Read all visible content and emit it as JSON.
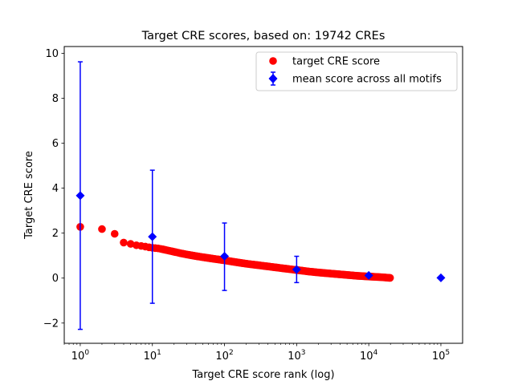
{
  "chart_data": {
    "type": "scatter",
    "title": "Target CRE scores, based on: 19742 CREs",
    "xlabel": "Target CRE score rank (log)",
    "ylabel": "Target CRE score",
    "xscale": "log",
    "xlim": [
      0.6,
      200000
    ],
    "ylim": [
      -2.9,
      10.3
    ],
    "xticks": [
      {
        "base": "10",
        "exp": "0",
        "value": 1
      },
      {
        "base": "10",
        "exp": "1",
        "value": 10
      },
      {
        "base": "10",
        "exp": "2",
        "value": 100
      },
      {
        "base": "10",
        "exp": "3",
        "value": 1000
      },
      {
        "base": "10",
        "exp": "4",
        "value": 10000
      },
      {
        "base": "10",
        "exp": "5",
        "value": 100000
      }
    ],
    "yticks": [
      "−2",
      "0",
      "2",
      "4",
      "6",
      "8",
      "10"
    ],
    "grid": false,
    "legend_position": "top-right",
    "series": [
      {
        "name": "target CRE score",
        "kind": "points",
        "color": "#ff0000",
        "marker": "circle",
        "curve": [
          [
            1,
            2.28
          ],
          [
            2,
            2.18
          ],
          [
            3,
            1.97
          ],
          [
            4,
            1.58
          ],
          [
            5,
            1.52
          ],
          [
            6,
            1.46
          ],
          [
            7,
            1.43
          ],
          [
            8,
            1.4
          ],
          [
            9,
            1.37
          ],
          [
            10,
            1.35
          ],
          [
            12,
            1.32
          ],
          [
            14,
            1.28
          ],
          [
            17,
            1.22
          ],
          [
            20,
            1.17
          ],
          [
            25,
            1.1
          ],
          [
            30,
            1.05
          ],
          [
            40,
            0.98
          ],
          [
            50,
            0.93
          ],
          [
            70,
            0.86
          ],
          [
            100,
            0.79
          ],
          [
            150,
            0.7
          ],
          [
            200,
            0.64
          ],
          [
            300,
            0.57
          ],
          [
            500,
            0.48
          ],
          [
            700,
            0.42
          ],
          [
            1000,
            0.36
          ],
          [
            1500,
            0.29
          ],
          [
            2000,
            0.25
          ],
          [
            3000,
            0.2
          ],
          [
            5000,
            0.14
          ],
          [
            7000,
            0.1
          ],
          [
            10000,
            0.07
          ],
          [
            15000,
            0.04
          ],
          [
            19742,
            0.01
          ]
        ]
      },
      {
        "name": "mean score across all motifs",
        "kind": "errorbar",
        "color": "#0000ff",
        "marker": "diamond",
        "points": [
          {
            "x": 1,
            "y": 3.67,
            "low": -2.28,
            "high": 9.62
          },
          {
            "x": 10,
            "y": 1.84,
            "low": -1.12,
            "high": 4.8
          },
          {
            "x": 100,
            "y": 0.97,
            "low": -0.55,
            "high": 2.45
          },
          {
            "x": 1000,
            "y": 0.38,
            "low": -0.2,
            "high": 0.97
          },
          {
            "x": 10000,
            "y": 0.12,
            "low": 0.12,
            "high": 0.12
          },
          {
            "x": 100000,
            "y": 0.01,
            "low": 0.01,
            "high": 0.01
          }
        ]
      }
    ]
  }
}
